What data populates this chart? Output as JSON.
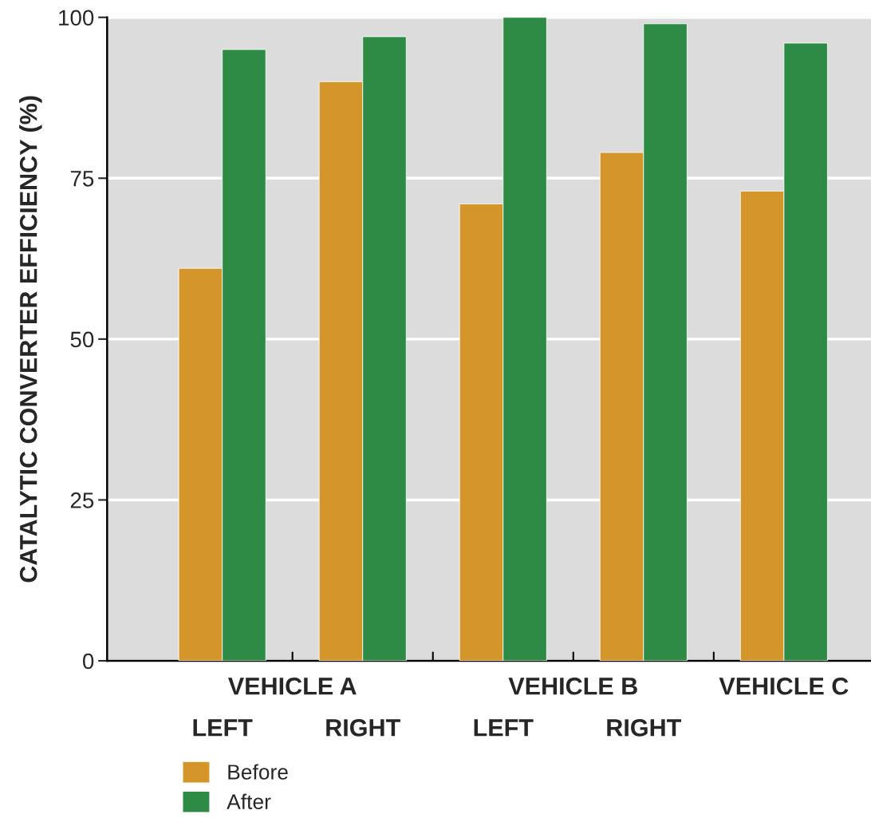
{
  "chart_data": {
    "type": "bar",
    "ylabel": "CATALYTIC CONVERTER EFFICIENCY (%)",
    "categories": [
      "LEFT",
      "RIGHT",
      "LEFT",
      "RIGHT",
      null
    ],
    "annotations": [
      "VEHICLE A",
      "VEHICLE B",
      "VEHICLE C"
    ],
    "series": [
      {
        "name": "Before",
        "color": "#d4952b",
        "values": [
          61,
          90,
          71,
          79,
          73
        ]
      },
      {
        "name": "After",
        "color": "#2e8b45",
        "values": [
          95,
          97,
          100,
          99,
          96
        ]
      }
    ],
    "ylim": [
      0,
      100
    ],
    "yticks": [
      0,
      25,
      50,
      75,
      100
    ],
    "grid": "y",
    "legend": "bottom left"
  }
}
